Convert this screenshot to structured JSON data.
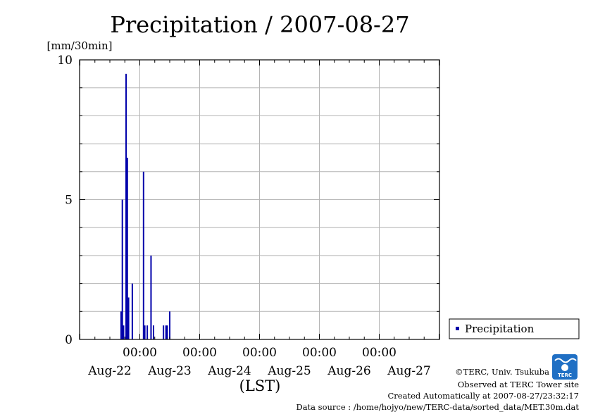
{
  "chart_data": {
    "type": "bar",
    "title": "Precipitation / 2007-08-27",
    "ylabel": "[mm/30min]",
    "xlabel": "(LST)",
    "ylim": [
      0,
      10
    ],
    "y_ticks": [
      0,
      5,
      10
    ],
    "grid": true,
    "legend_position": "right",
    "x_tick_times": [
      "00:00",
      "00:00",
      "00:00",
      "00:00",
      "00:00"
    ],
    "x_tick_dates": [
      "Aug-22",
      "Aug-23",
      "Aug-24",
      "Aug-25",
      "Aug-26",
      "Aug-27"
    ],
    "series": [
      {
        "name": "Precipitation",
        "color": "#0000aa",
        "points": [
          {
            "x": "2007-08-22 16:30",
            "y": 1.0
          },
          {
            "x": "2007-08-22 17:00",
            "y": 5.0
          },
          {
            "x": "2007-08-22 17:30",
            "y": 0.5
          },
          {
            "x": "2007-08-22 18:30",
            "y": 9.5
          },
          {
            "x": "2007-08-22 19:00",
            "y": 6.5
          },
          {
            "x": "2007-08-22 19:30",
            "y": 1.5
          },
          {
            "x": "2007-08-22 21:00",
            "y": 2.0
          },
          {
            "x": "2007-08-23 01:30",
            "y": 6.0
          },
          {
            "x": "2007-08-23 02:00",
            "y": 0.5
          },
          {
            "x": "2007-08-23 03:00",
            "y": 0.5
          },
          {
            "x": "2007-08-23 04:30",
            "y": 3.0
          },
          {
            "x": "2007-08-23 05:30",
            "y": 0.5
          },
          {
            "x": "2007-08-23 09:30",
            "y": 0.5
          },
          {
            "x": "2007-08-23 10:30",
            "y": 0.5
          },
          {
            "x": "2007-08-23 11:00",
            "y": 0.5
          },
          {
            "x": "2007-08-23 12:00",
            "y": 1.0
          }
        ]
      }
    ]
  },
  "footer": {
    "copyright": "©TERC, Univ. Tsukuba",
    "observed": "Observed at TERC Tower site",
    "created": "Created Automatically at 2007-08-27/23:32:17",
    "source": "Data source : /home/hojyo/new/TERC-data/sorted_data/MET.30m.dat"
  },
  "logo": {
    "text": "TERC",
    "color": "#1f6fc4"
  }
}
